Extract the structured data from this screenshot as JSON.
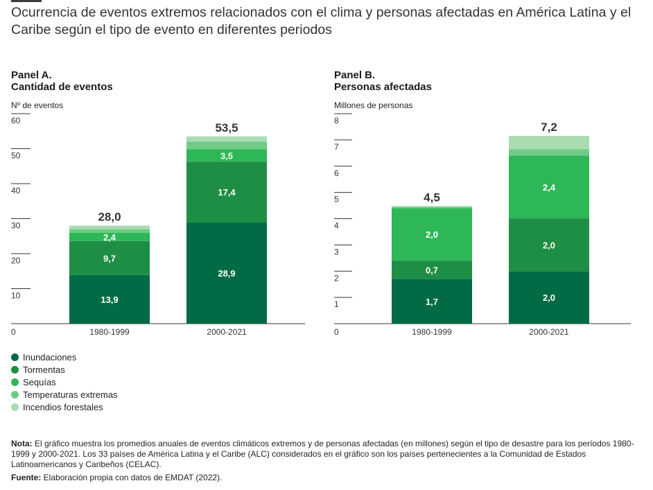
{
  "title": "Ocurrencia de eventos extremos relacionados con el clima y personas afectadas en América Latina y el Caribe según el tipo de evento en diferentes periodos",
  "panels": {
    "a": {
      "title_line1": "Panel A.",
      "title_line2": "Cantidad de eventos",
      "unit": "Nº de eventos"
    },
    "b": {
      "title_line1": "Panel B.",
      "title_line2": "Personas afectadas",
      "unit": "Millones de personas"
    }
  },
  "legend": [
    {
      "label": "Inundaciones",
      "color": "#006b45"
    },
    {
      "label": "Tormentas",
      "color": "#1d8e44"
    },
    {
      "label": "Sequías",
      "color": "#2db757"
    },
    {
      "label": "Temperaturas extremas",
      "color": "#6fcb85"
    },
    {
      "label": "Incendios forestales",
      "color": "#a9dcb3"
    }
  ],
  "notes": {
    "nota_label": "Nota:",
    "nota_text": " El gráfico muestra los promedios anuales de eventos climáticos extremos y de personas afectadas (en millones) según el tipo de desastre para los períodos 1980-1999 y 2000-2021. Los 33 países de América Latina y el Caribe (ALC) considerados en el gráfico son los países pertenecientes a la Comunidad de Estados Latinoamericanos y Caribeños (CELAC).",
    "fuente_label": "Fuente:",
    "fuente_text": " Elaboración propia con datos de EMDAT (2022)."
  },
  "chart_data": [
    {
      "type": "bar",
      "stacked": true,
      "title": "Panel A. Cantidad de eventos",
      "ylabel": "Nº de eventos",
      "ylim": [
        0,
        60
      ],
      "yticks": [
        0,
        10,
        20,
        30,
        40,
        50,
        60
      ],
      "categories": [
        "1980-1999",
        "2000-2021"
      ],
      "totals": [
        "28,0",
        "53,5"
      ],
      "series": [
        {
          "name": "Inundaciones",
          "values": [
            13.9,
            28.9
          ],
          "labels": [
            "13,9",
            "28,9"
          ]
        },
        {
          "name": "Tormentas",
          "values": [
            9.7,
            17.4
          ],
          "labels": [
            "9,7",
            "17,4"
          ]
        },
        {
          "name": "Sequías",
          "values": [
            2.4,
            3.5
          ],
          "labels": [
            "2,4",
            "3,5"
          ]
        },
        {
          "name": "Temperaturas extremas",
          "values": [
            1.0,
            2.2
          ],
          "labels": [
            "",
            ""
          ]
        },
        {
          "name": "Incendios forestales",
          "values": [
            1.0,
            1.5
          ],
          "labels": [
            "",
            ""
          ]
        }
      ]
    },
    {
      "type": "bar",
      "stacked": true,
      "title": "Panel B. Personas afectadas",
      "ylabel": "Millones de personas",
      "ylim": [
        0,
        8
      ],
      "yticks": [
        0,
        1,
        2,
        3,
        4,
        5,
        6,
        7,
        8
      ],
      "categories": [
        "1980-1999",
        "2000-2021"
      ],
      "totals": [
        "4,5",
        "7,2"
      ],
      "series": [
        {
          "name": "Inundaciones",
          "values": [
            1.7,
            2.0
          ],
          "labels": [
            "1,7",
            "2,0"
          ]
        },
        {
          "name": "Tormentas",
          "values": [
            0.7,
            2.0
          ],
          "labels": [
            "0,7",
            "2,0"
          ]
        },
        {
          "name": "Sequías",
          "values": [
            2.0,
            2.4
          ],
          "labels": [
            "2,0",
            "2,4"
          ]
        },
        {
          "name": "Temperaturas extremas",
          "values": [
            0.05,
            0.25
          ],
          "labels": [
            "",
            ""
          ]
        },
        {
          "name": "Incendios forestales",
          "values": [
            0.03,
            0.5
          ],
          "labels": [
            "",
            ""
          ]
        }
      ]
    }
  ]
}
